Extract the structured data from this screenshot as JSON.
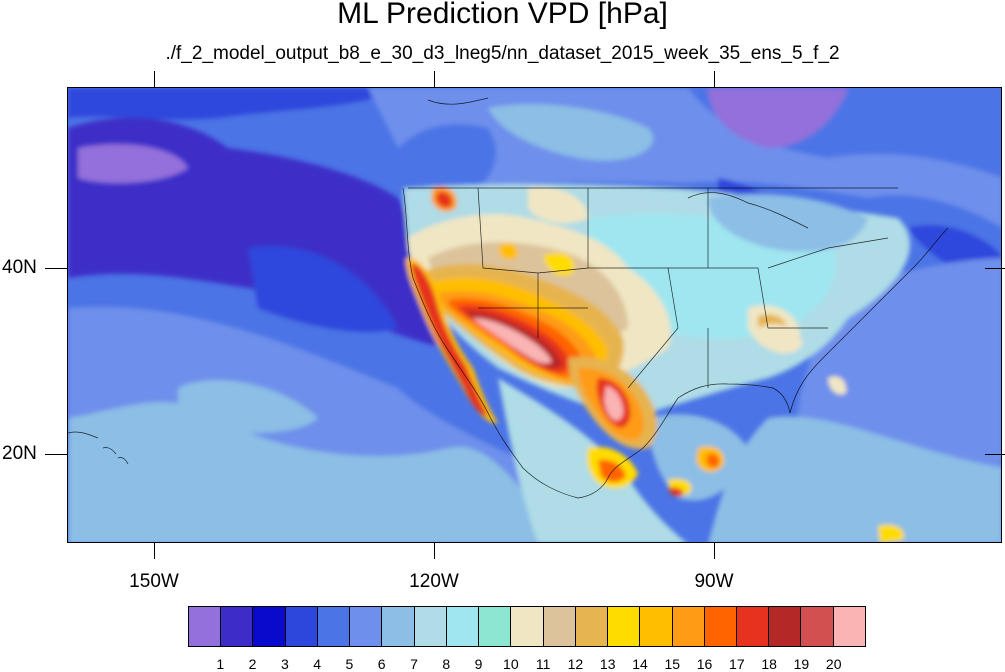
{
  "title": "ML Prediction VPD [hPa]",
  "subtitle": "./f_2_model_output_b8_e_30_d3_lneg5/nn_dataset_2015_week_35_ens_5_f_2",
  "map": {
    "projection": "cylindrical equidistant",
    "lon_range": [
      -161,
      -61
    ],
    "lat_range": [
      11,
      60
    ],
    "y_labels": [
      "40N",
      "20N"
    ],
    "x_labels": [
      "150W",
      "120W",
      "90W"
    ]
  },
  "colorbar": {
    "labels": [
      "1",
      "2",
      "3",
      "4",
      "5",
      "6",
      "7",
      "8",
      "9",
      "10",
      "11",
      "12",
      "13",
      "14",
      "15",
      "16",
      "17",
      "18",
      "19",
      "20"
    ],
    "colors": [
      "#9370DB",
      "#3C2DC8",
      "#0A0ACD",
      "#2D46DC",
      "#4B74E6",
      "#6E8FEB",
      "#8CBEE6",
      "#AFDCE6",
      "#A0E6F0",
      "#8CE6D2",
      "#F0E6C3",
      "#DCC39B",
      "#E6B450",
      "#FFDC00",
      "#FFBE00",
      "#FF9B14",
      "#FF6400",
      "#E6321E",
      "#B42828",
      "#D25050",
      "#FAB4B4"
    ]
  }
}
